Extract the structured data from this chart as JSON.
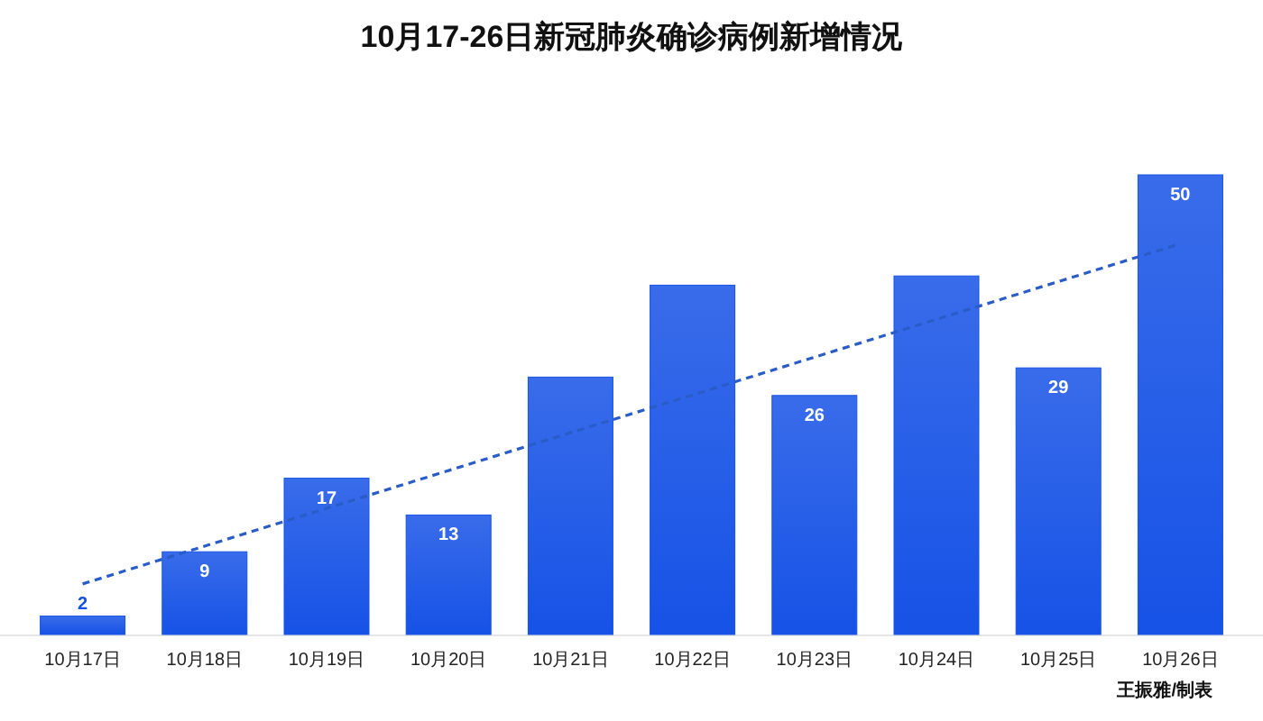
{
  "chart_data": {
    "type": "bar",
    "title": "10月17-26日新冠肺炎确诊病例新增情况",
    "categories": [
      "10月17日",
      "10月18日",
      "10月19日",
      "10月20日",
      "10月21日",
      "10月22日",
      "10月23日",
      "10月24日",
      "10月25日",
      "10月26日"
    ],
    "series": [
      {
        "color": "#1652e6",
        "values": [
          2,
          9,
          17,
          13,
          28,
          38,
          26,
          39,
          29,
          50
        ],
        "value_labels": [
          "2",
          "9",
          "17",
          "13",
          null,
          null,
          "26",
          null,
          "29",
          "50"
        ]
      },
      {
        "type": "line",
        "color": "#2a5cc8",
        "line_style": "dashed",
        "x": [
          "10月17日",
          "10月26日"
        ],
        "values": [
          5.5,
          42.5
        ]
      }
    ],
    "annotations": [
      "王振雅/制表"
    ]
  }
}
